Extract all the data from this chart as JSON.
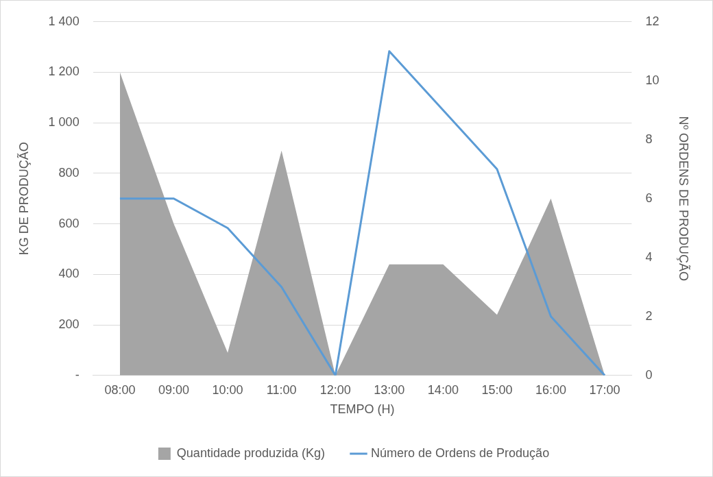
{
  "chart_data": {
    "type": "area",
    "xlabel": "TEMPO (H)",
    "ylabel": "KG DE PRODUÇÃO",
    "y2label": "Nº ORDENS DE PRODUÇÃO",
    "categories": [
      "08:00",
      "09:00",
      "10:00",
      "11:00",
      "12:00",
      "13:00",
      "14:00",
      "15:00",
      "16:00",
      "17:00"
    ],
    "series": [
      {
        "name": "Quantidade produzida (Kg)",
        "color": "#a5a5a5",
        "values": [
          1200,
          600,
          90,
          890,
          0,
          440,
          440,
          240,
          700,
          0
        ]
      },
      {
        "name": "Número de Ordens de Produção",
        "type": "line",
        "axis": "y2",
        "color": "#5b9bd5",
        "values": [
          6,
          6,
          5,
          3,
          0,
          11,
          9,
          7,
          2,
          0
        ]
      }
    ],
    "ylim": [
      0,
      1400
    ],
    "yticks": [
      {
        "value": 0,
        "label": "-"
      },
      200,
      400,
      600,
      800,
      {
        "value": 1000,
        "label": "1 000"
      },
      {
        "value": 1200,
        "label": "1 200"
      },
      {
        "value": 1400,
        "label": "1 400"
      }
    ],
    "y2lim": [
      0,
      12
    ],
    "y2ticks": [
      0,
      2,
      4,
      6,
      8,
      10,
      12
    ],
    "grid": "y",
    "legend": "bottom",
    "marker": "none",
    "line_style": "solid"
  }
}
